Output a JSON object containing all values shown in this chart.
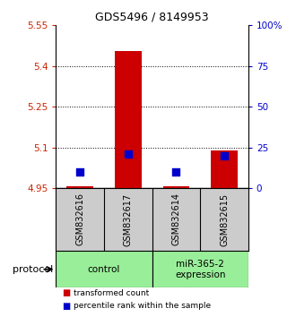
{
  "title": "GDS5496 / 8149953",
  "samples": [
    "GSM832616",
    "GSM832617",
    "GSM832614",
    "GSM832615"
  ],
  "transformed_counts": [
    4.955,
    5.455,
    4.955,
    5.09
  ],
  "percentile_ranks": [
    10,
    21,
    10,
    20
  ],
  "ylim_left": [
    4.95,
    5.55
  ],
  "ylim_right": [
    0,
    100
  ],
  "yticks_left": [
    4.95,
    5.1,
    5.25,
    5.4,
    5.55
  ],
  "yticks_right": [
    0,
    25,
    50,
    75,
    100
  ],
  "ytick_labels_left": [
    "4.95",
    "5.1",
    "5.25",
    "5.4",
    "5.55"
  ],
  "ytick_labels_right": [
    "0",
    "25",
    "50",
    "75",
    "100%"
  ],
  "hlines": [
    5.1,
    5.25,
    5.4
  ],
  "bar_color": "#cc0000",
  "dot_color": "#0000cc",
  "bar_width": 0.55,
  "dot_size": 35,
  "base_value": 4.95,
  "left_tick_color": "#cc2200",
  "right_tick_color": "#0000cc",
  "sample_bg_color": "#cccccc",
  "group_bg_color": "#99ee99",
  "legend_red_label": "transformed count",
  "legend_blue_label": "percentile rank within the sample",
  "protocol_label": "protocol",
  "group_defs": [
    [
      0,
      1,
      "control"
    ],
    [
      2,
      3,
      "miR-365-2\nexpression"
    ]
  ]
}
